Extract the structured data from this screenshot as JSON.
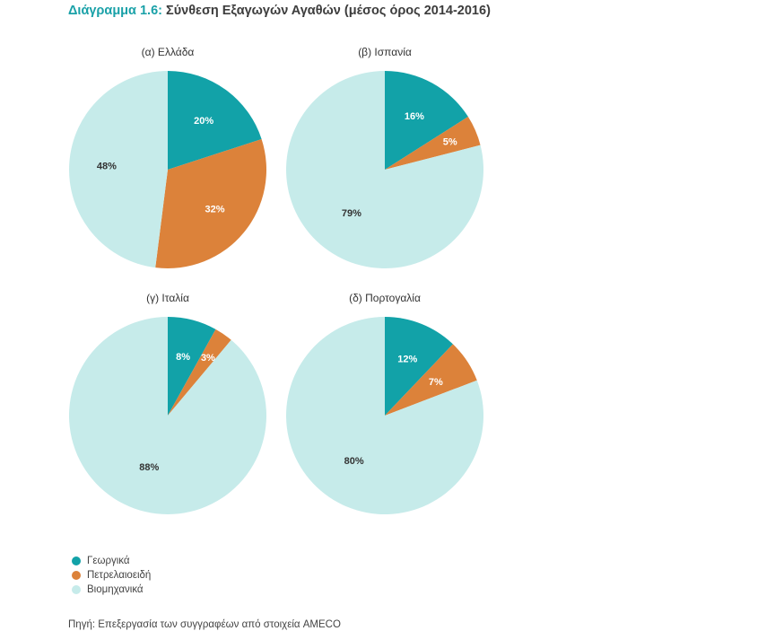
{
  "header": {
    "title_prefix": "Διάγραμμα 1.6:",
    "title_rest": "Σύνθεση Εξαγωγών Αγαθών (μέσος όρος 2014-2016)"
  },
  "colors": {
    "agricultural": "#12a2a8",
    "petroleum": "#dc823a",
    "industrial": "#c6ebea"
  },
  "chart_data": [
    {
      "type": "pie",
      "title": "(α) Ελλάδα",
      "categories": [
        "Γεωργικά",
        "Πετρελαιοειδή",
        "Βιομηχανικά"
      ],
      "values": [
        20,
        32,
        48
      ],
      "labels": [
        "20%",
        "32%",
        "48%"
      ]
    },
    {
      "type": "pie",
      "title": "(β) Ισπανία",
      "categories": [
        "Γεωργικά",
        "Πετρελαιοειδή",
        "Βιομηχανικά"
      ],
      "values": [
        16,
        5,
        79
      ],
      "labels": [
        "16%",
        "5%",
        "79%"
      ]
    },
    {
      "type": "pie",
      "title": "(γ) Ιταλία",
      "categories": [
        "Γεωργικά",
        "Πετρελαιοειδή",
        "Βιομηχανικά"
      ],
      "values": [
        8,
        3,
        88
      ],
      "labels": [
        "8%",
        "3%",
        "88%"
      ]
    },
    {
      "type": "pie",
      "title": "(δ) Πορτογαλία",
      "categories": [
        "Γεωργικά",
        "Πετρελαιοειδή",
        "Βιομηχανικά"
      ],
      "values": [
        12,
        7,
        80
      ],
      "labels": [
        "12%",
        "7%",
        "80%"
      ]
    }
  ],
  "legend": [
    {
      "label": "Γεωργικά",
      "color": "#12a2a8"
    },
    {
      "label": "Πετρελαιοειδή",
      "color": "#dc823a"
    },
    {
      "label": "Βιομηχανικά",
      "color": "#c6ebea"
    }
  ],
  "footer": {
    "source": "Πηγή: Επεξεργασία των συγγραφέων από στοιχεία AMECO"
  }
}
